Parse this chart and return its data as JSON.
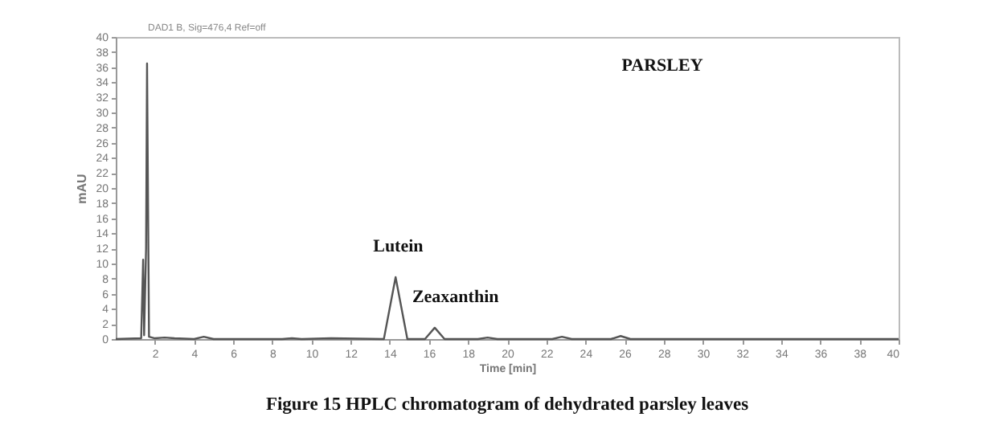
{
  "chart_data": {
    "type": "line",
    "title": "Figure 15 HPLC chromatogram of dehydrated parsley leaves",
    "xlabel": "Time [min]",
    "ylabel": "mAU",
    "x": [
      0,
      1.3,
      1.4,
      1.45,
      1.55,
      1.6,
      1.7,
      2,
      2.5,
      3,
      4,
      4.5,
      5,
      8.5,
      9,
      9.5,
      11,
      13.7,
      14.3,
      14.9,
      15.8,
      16.3,
      16.8,
      18.5,
      19,
      19.5,
      22.3,
      22.8,
      23.3,
      25.3,
      25.8,
      26.3,
      40
    ],
    "series": [
      {
        "color": "#555555",
        "values": [
          0,
          0.1,
          10.5,
          0.5,
          12,
          36.5,
          0.3,
          0.1,
          0.2,
          0.1,
          0,
          0.3,
          0,
          0,
          0.1,
          0,
          0.1,
          0,
          8.2,
          0,
          0,
          1.5,
          0,
          0,
          0.2,
          0,
          0,
          0.3,
          0,
          0,
          0.4,
          0,
          0
        ]
      }
    ],
    "xlim": [
      0,
      40
    ],
    "xticks": [
      2,
      4,
      6,
      8,
      10,
      12,
      14,
      16,
      18,
      20,
      22,
      24,
      26,
      28,
      30,
      32,
      34,
      36,
      38,
      40
    ],
    "ylim": [
      0,
      40
    ],
    "yticks": [
      0,
      2,
      4,
      6,
      8,
      10,
      12,
      14,
      16,
      18,
      20,
      22,
      24,
      26,
      28,
      30,
      32,
      34,
      36,
      38,
      40
    ],
    "grid": false,
    "marker": "none",
    "line_style": "solid",
    "annotations": [
      "DAD1 B, Sig=476,4 Ref=off",
      "PARSLEY",
      {
        "text": "Lutein",
        "x": 14.3,
        "y": 8.2
      },
      {
        "text": "Zeaxanthin",
        "x": 16.3,
        "y": 1.5
      }
    ]
  }
}
